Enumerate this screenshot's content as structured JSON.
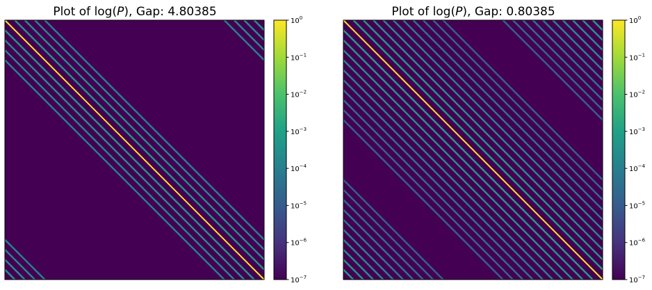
{
  "chart_data": [
    {
      "type": "heatmap",
      "title_prefix": "Plot of log(",
      "title_var": "P",
      "title_suffix": "), Gap: 4.80385",
      "matrix": "banded-circulant",
      "band_offsets": [
        1,
        2,
        3,
        4
      ],
      "band_value": 0.0005,
      "diagonal_value": 1.0,
      "background_value": 1e-07,
      "colorbar": {
        "scale": "log",
        "colormap": "viridis",
        "min": 1e-07,
        "max": 1,
        "tick_labels": [
          {
            "base": "10",
            "exp": "0",
            "value": 1
          },
          {
            "base": "10",
            "exp": "−1",
            "value": 0.1
          },
          {
            "base": "10",
            "exp": "−2",
            "value": 0.01
          },
          {
            "base": "10",
            "exp": "−3",
            "value": 0.001
          },
          {
            "base": "10",
            "exp": "−4",
            "value": 0.0001
          },
          {
            "base": "10",
            "exp": "−5",
            "value": 1e-05
          },
          {
            "base": "10",
            "exp": "−6",
            "value": 1e-06
          },
          {
            "base": "10",
            "exp": "−7",
            "value": 1e-07
          }
        ]
      }
    },
    {
      "type": "heatmap",
      "title_prefix": "Plot of log(",
      "title_var": "P",
      "title_suffix": "), Gap: 0.80385",
      "matrix": "banded-circulant",
      "band_offsets": [
        1,
        2,
        3,
        4,
        5,
        6,
        7,
        8,
        9,
        10
      ],
      "band_value": 0.001,
      "diagonal_value": 1.0,
      "background_value": 1e-07,
      "colorbar": {
        "scale": "log",
        "colormap": "viridis",
        "min": 1e-07,
        "max": 1,
        "tick_labels": [
          {
            "base": "10",
            "exp": "0",
            "value": 1
          },
          {
            "base": "10",
            "exp": "−1",
            "value": 0.1
          },
          {
            "base": "10",
            "exp": "−2",
            "value": 0.01
          },
          {
            "base": "10",
            "exp": "−3",
            "value": 0.001
          },
          {
            "base": "10",
            "exp": "−4",
            "value": 0.0001
          },
          {
            "base": "10",
            "exp": "−5",
            "value": 1e-05
          },
          {
            "base": "10",
            "exp": "−6",
            "value": 1e-06
          },
          {
            "base": "10",
            "exp": "−7",
            "value": 1e-07
          }
        ]
      }
    }
  ]
}
